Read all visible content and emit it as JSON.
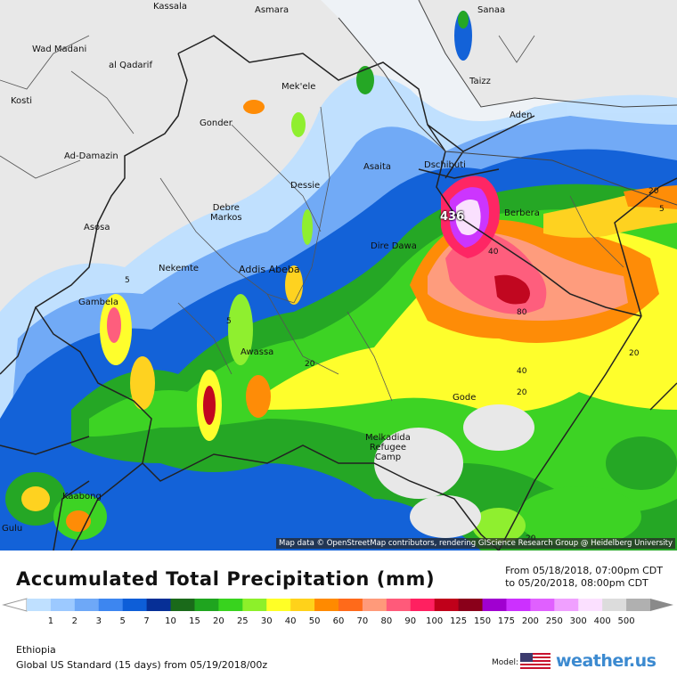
{
  "map": {
    "cities": [
      {
        "id": "kassala",
        "name": "Kassala"
      },
      {
        "id": "asmara",
        "name": "Asmara"
      },
      {
        "id": "sanaa",
        "name": "Sanaa"
      },
      {
        "id": "wad-madani",
        "name": "Wad Madani"
      },
      {
        "id": "al-qadarif",
        "name": "al Qadarif"
      },
      {
        "id": "mekele",
        "name": "Mek'ele"
      },
      {
        "id": "taizz",
        "name": "Taizz"
      },
      {
        "id": "kosti",
        "name": "Kosti"
      },
      {
        "id": "gonder",
        "name": "Gonder"
      },
      {
        "id": "aden",
        "name": "Aden"
      },
      {
        "id": "ad-damazin",
        "name": "Ad-Damazin"
      },
      {
        "id": "asaita",
        "name": "Asaita"
      },
      {
        "id": "dschibuti",
        "name": "Dschibuti"
      },
      {
        "id": "dessie",
        "name": "Dessie"
      },
      {
        "id": "debre-markos",
        "name": "Debre\nMarkos"
      },
      {
        "id": "berbera",
        "name": "Berbera"
      },
      {
        "id": "asosa",
        "name": "Asosa"
      },
      {
        "id": "dire-dawa",
        "name": "Dire Dawa"
      },
      {
        "id": "nekemte",
        "name": "Nekemte"
      },
      {
        "id": "addis-abeba",
        "name": "Addis Abeba"
      },
      {
        "id": "gambela",
        "name": "Gambela"
      },
      {
        "id": "awassa",
        "name": "Awassa"
      },
      {
        "id": "gode",
        "name": "Gode"
      },
      {
        "id": "melkadida",
        "name": "Melkadida\nRefugee\nCamp"
      },
      {
        "id": "kaabong",
        "name": "Kaabong"
      },
      {
        "id": "gulu",
        "name": "Gulu"
      }
    ],
    "contour_labels": [
      "40",
      "80",
      "40",
      "20",
      "20",
      "20",
      "20",
      "5",
      "5",
      "5",
      "20"
    ],
    "max_label": "436",
    "attribution": "Map data © OpenStreetMap contributors, rendering GIScience Research Group @ Heidelberg University"
  },
  "footer": {
    "title": "Accumulated Total Precipitation (mm)",
    "valid_from": "From 05/18/2018, 07:00pm CDT",
    "valid_to": "to 05/20/2018, 08:00pm CDT",
    "region": "Ethiopia",
    "model_run": "Global US Standard (15 days) from 05/19/2018/00z",
    "model_label": "Model:",
    "brand": "weather.us"
  },
  "legend": {
    "ticks": [
      "1",
      "2",
      "3",
      "5",
      "7",
      "10",
      "15",
      "20",
      "25",
      "30",
      "40",
      "50",
      "60",
      "70",
      "80",
      "90",
      "100",
      "125",
      "150",
      "175",
      "200",
      "250",
      "300",
      "400",
      "500"
    ],
    "colors": [
      "#bfe0ff",
      "#9cc9ff",
      "#6ea8f7",
      "#3d86f0",
      "#0d5ed8",
      "#062f96",
      "#1a6a1a",
      "#1fa51f",
      "#38d31e",
      "#8df02a",
      "#ffff26",
      "#ffd21a",
      "#ff8a00",
      "#ff6a1a",
      "#ff9a7a",
      "#ff5a7a",
      "#ff2060",
      "#c0001a",
      "#8a001a",
      "#a000d0",
      "#cc30ff",
      "#e060ff",
      "#f0a0ff",
      "#fbe0ff",
      "#dcdcdc",
      "#b0b0b0"
    ]
  }
}
